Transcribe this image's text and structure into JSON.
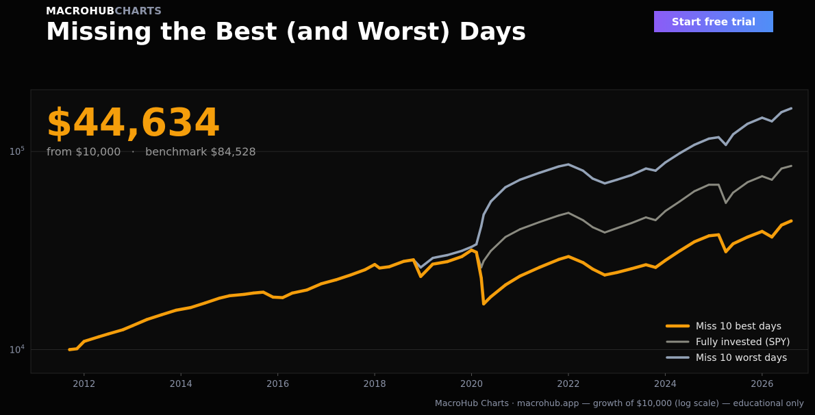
{
  "brand": {
    "part1": "MACROHUB",
    "part2": "CHARTS"
  },
  "title": "Missing the Best (and Worst) Days",
  "cta_label": "Start free trial",
  "headline": {
    "value": "$44,634",
    "sub": "from $10,000   ·   benchmark $84,528"
  },
  "footer": "MacroHub Charts · macrohub.app  —  growth of $10,000 (log scale) — educational only",
  "colors": {
    "best": "#f59e0b",
    "spy": "#8a8a80",
    "worst": "#94a3b8",
    "background": "#050505",
    "panel": "#0b0b0b"
  },
  "chart_data": {
    "type": "line",
    "title": "",
    "xlabel": "",
    "ylabel": "",
    "yscale": "log",
    "xlim": [
      2010.9,
      2026.95
    ],
    "ylim": [
      7600,
      205000
    ],
    "xticks": [
      2012,
      2014,
      2016,
      2018,
      2020,
      2022,
      2024,
      2026
    ],
    "yticks": [
      {
        "value": 10000,
        "base": "10",
        "exp": "4"
      },
      {
        "value": 100000,
        "base": "10",
        "exp": "5"
      }
    ],
    "grid": true,
    "legend_position": "bottom-right",
    "series": [
      {
        "name": "Miss 10 best days",
        "x": [
          2011.7,
          2011.85,
          2012.0,
          2012.3,
          2012.5,
          2012.8,
          2013.0,
          2013.3,
          2013.6,
          2013.9,
          2014.2,
          2014.5,
          2014.8,
          2015.0,
          2015.3,
          2015.5,
          2015.7,
          2015.9,
          2016.1,
          2016.3,
          2016.6,
          2016.9,
          2017.2,
          2017.5,
          2017.8,
          2018.0,
          2018.1,
          2018.3,
          2018.6,
          2018.8,
          2018.95,
          2019.2,
          2019.5,
          2019.8,
          2020.0,
          2020.1,
          2020.2,
          2020.25,
          2020.4,
          2020.7,
          2021.0,
          2021.4,
          2021.8,
          2022.0,
          2022.3,
          2022.5,
          2022.75,
          2023.0,
          2023.3,
          2023.6,
          2023.8,
          2024.0,
          2024.3,
          2024.6,
          2024.9,
          2025.1,
          2025.25,
          2025.4,
          2025.7,
          2026.0,
          2026.2,
          2026.4,
          2026.6
        ],
        "values": [
          10000,
          10100,
          11000,
          11600,
          12000,
          12600,
          13200,
          14200,
          15000,
          15800,
          16300,
          17200,
          18200,
          18700,
          19000,
          19300,
          19500,
          18400,
          18300,
          19300,
          20000,
          21500,
          22500,
          23800,
          25300,
          26900,
          25800,
          26200,
          27900,
          28400,
          23400,
          27000,
          27800,
          29500,
          31800,
          31000,
          23000,
          17000,
          18500,
          21200,
          23500,
          26000,
          28500,
          29500,
          27500,
          25500,
          23800,
          24500,
          25600,
          26800,
          26000,
          28200,
          31500,
          35000,
          37500,
          38000,
          31200,
          34200,
          37000,
          39500,
          37000,
          42500,
          44634
        ]
      },
      {
        "name": "Fully invested (SPY)",
        "x": [
          2011.7,
          2011.85,
          2012.0,
          2012.3,
          2012.5,
          2012.8,
          2013.0,
          2013.3,
          2013.6,
          2013.9,
          2014.2,
          2014.5,
          2014.8,
          2015.0,
          2015.3,
          2015.5,
          2015.7,
          2015.9,
          2016.1,
          2016.3,
          2016.6,
          2016.9,
          2017.2,
          2017.5,
          2017.8,
          2018.0,
          2018.1,
          2018.3,
          2018.6,
          2018.8,
          2018.95,
          2019.2,
          2019.5,
          2019.8,
          2020.0,
          2020.1,
          2020.2,
          2020.25,
          2020.4,
          2020.7,
          2021.0,
          2021.4,
          2021.8,
          2022.0,
          2022.3,
          2022.5,
          2022.75,
          2023.0,
          2023.3,
          2023.6,
          2023.8,
          2024.0,
          2024.3,
          2024.6,
          2024.9,
          2025.1,
          2025.25,
          2025.4,
          2025.7,
          2026.0,
          2026.2,
          2026.4,
          2026.6
        ],
        "values": [
          10000,
          10100,
          11000,
          11600,
          12000,
          12600,
          13200,
          14200,
          15000,
          15800,
          16300,
          17200,
          18200,
          18700,
          19000,
          19300,
          19500,
          18400,
          18300,
          19300,
          20000,
          21500,
          22500,
          23800,
          25300,
          26900,
          25800,
          26200,
          27900,
          28400,
          23400,
          27000,
          27800,
          29500,
          31800,
          31000,
          26000,
          28000,
          31500,
          37000,
          40500,
          44000,
          47500,
          49000,
          45000,
          41500,
          39000,
          41000,
          43500,
          46500,
          45000,
          50000,
          56000,
          63000,
          68000,
          68000,
          55000,
          62000,
          70000,
          75000,
          72000,
          82000,
          84528
        ]
      },
      {
        "name": "Miss 10 worst days",
        "x": [
          2011.7,
          2011.85,
          2012.0,
          2012.3,
          2012.5,
          2012.8,
          2013.0,
          2013.3,
          2013.6,
          2013.9,
          2014.2,
          2014.5,
          2014.8,
          2015.0,
          2015.3,
          2015.5,
          2015.7,
          2015.9,
          2016.1,
          2016.3,
          2016.6,
          2016.9,
          2017.2,
          2017.5,
          2017.8,
          2018.0,
          2018.1,
          2018.3,
          2018.6,
          2018.8,
          2018.95,
          2019.2,
          2019.5,
          2019.8,
          2020.0,
          2020.1,
          2020.2,
          2020.25,
          2020.4,
          2020.7,
          2021.0,
          2021.4,
          2021.8,
          2022.0,
          2022.3,
          2022.5,
          2022.75,
          2023.0,
          2023.3,
          2023.6,
          2023.8,
          2024.0,
          2024.3,
          2024.6,
          2024.9,
          2025.1,
          2025.25,
          2025.4,
          2025.7,
          2026.0,
          2026.2,
          2026.4,
          2026.6
        ],
        "values": [
          10000,
          10100,
          11000,
          11600,
          12000,
          12600,
          13200,
          14200,
          15000,
          15800,
          16300,
          17200,
          18200,
          18700,
          19000,
          19300,
          19500,
          18400,
          18300,
          19300,
          20000,
          21500,
          22500,
          23800,
          25300,
          26900,
          25800,
          26200,
          27900,
          28400,
          26000,
          29000,
          30000,
          31500,
          33000,
          34000,
          42000,
          48000,
          56000,
          66000,
          72000,
          78000,
          84000,
          86000,
          80000,
          73000,
          69000,
          72000,
          76000,
          82000,
          80000,
          88000,
          98000,
          108000,
          116000,
          118000,
          108000,
          122000,
          138000,
          148000,
          142000,
          158000,
          165000
        ]
      }
    ]
  }
}
